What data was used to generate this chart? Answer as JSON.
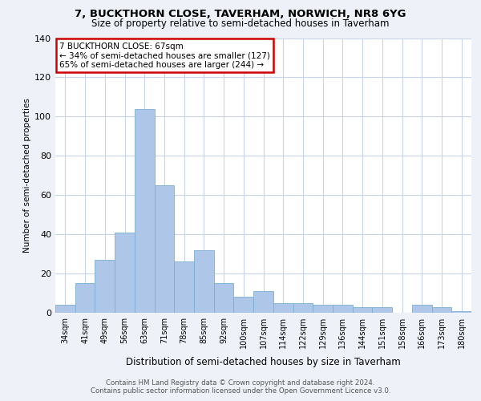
{
  "title_line1": "7, BUCKTHORN CLOSE, TAVERHAM, NORWICH, NR8 6YG",
  "title_line2": "Size of property relative to semi-detached houses in Taverham",
  "xlabel": "Distribution of semi-detached houses by size in Taverham",
  "ylabel": "Number of semi-detached properties",
  "footnote1": "Contains HM Land Registry data © Crown copyright and database right 2024.",
  "footnote2": "Contains public sector information licensed under the Open Government Licence v3.0.",
  "categories": [
    "34sqm",
    "41sqm",
    "49sqm",
    "56sqm",
    "63sqm",
    "71sqm",
    "78sqm",
    "85sqm",
    "92sqm",
    "100sqm",
    "107sqm",
    "114sqm",
    "122sqm",
    "129sqm",
    "136sqm",
    "144sqm",
    "151sqm",
    "158sqm",
    "166sqm",
    "173sqm",
    "180sqm"
  ],
  "values": [
    4,
    15,
    27,
    41,
    104,
    65,
    26,
    32,
    15,
    8,
    11,
    5,
    5,
    4,
    4,
    3,
    3,
    0,
    4,
    3,
    1
  ],
  "bar_color": "#aec6e8",
  "bar_edge_color": "#7bafd4",
  "annotation_text": "7 BUCKTHORN CLOSE: 67sqm\n← 34% of semi-detached houses are smaller (127)\n65% of semi-detached houses are larger (244) →",
  "annotation_box_edge_color": "#cc0000",
  "ylim": [
    0,
    140
  ],
  "yticks": [
    0,
    20,
    40,
    60,
    80,
    100,
    120,
    140
  ],
  "bg_color": "#eef2f8",
  "plot_bg_color": "#ffffff",
  "grid_color": "#c8d4e8",
  "property_sqm_index": 4
}
